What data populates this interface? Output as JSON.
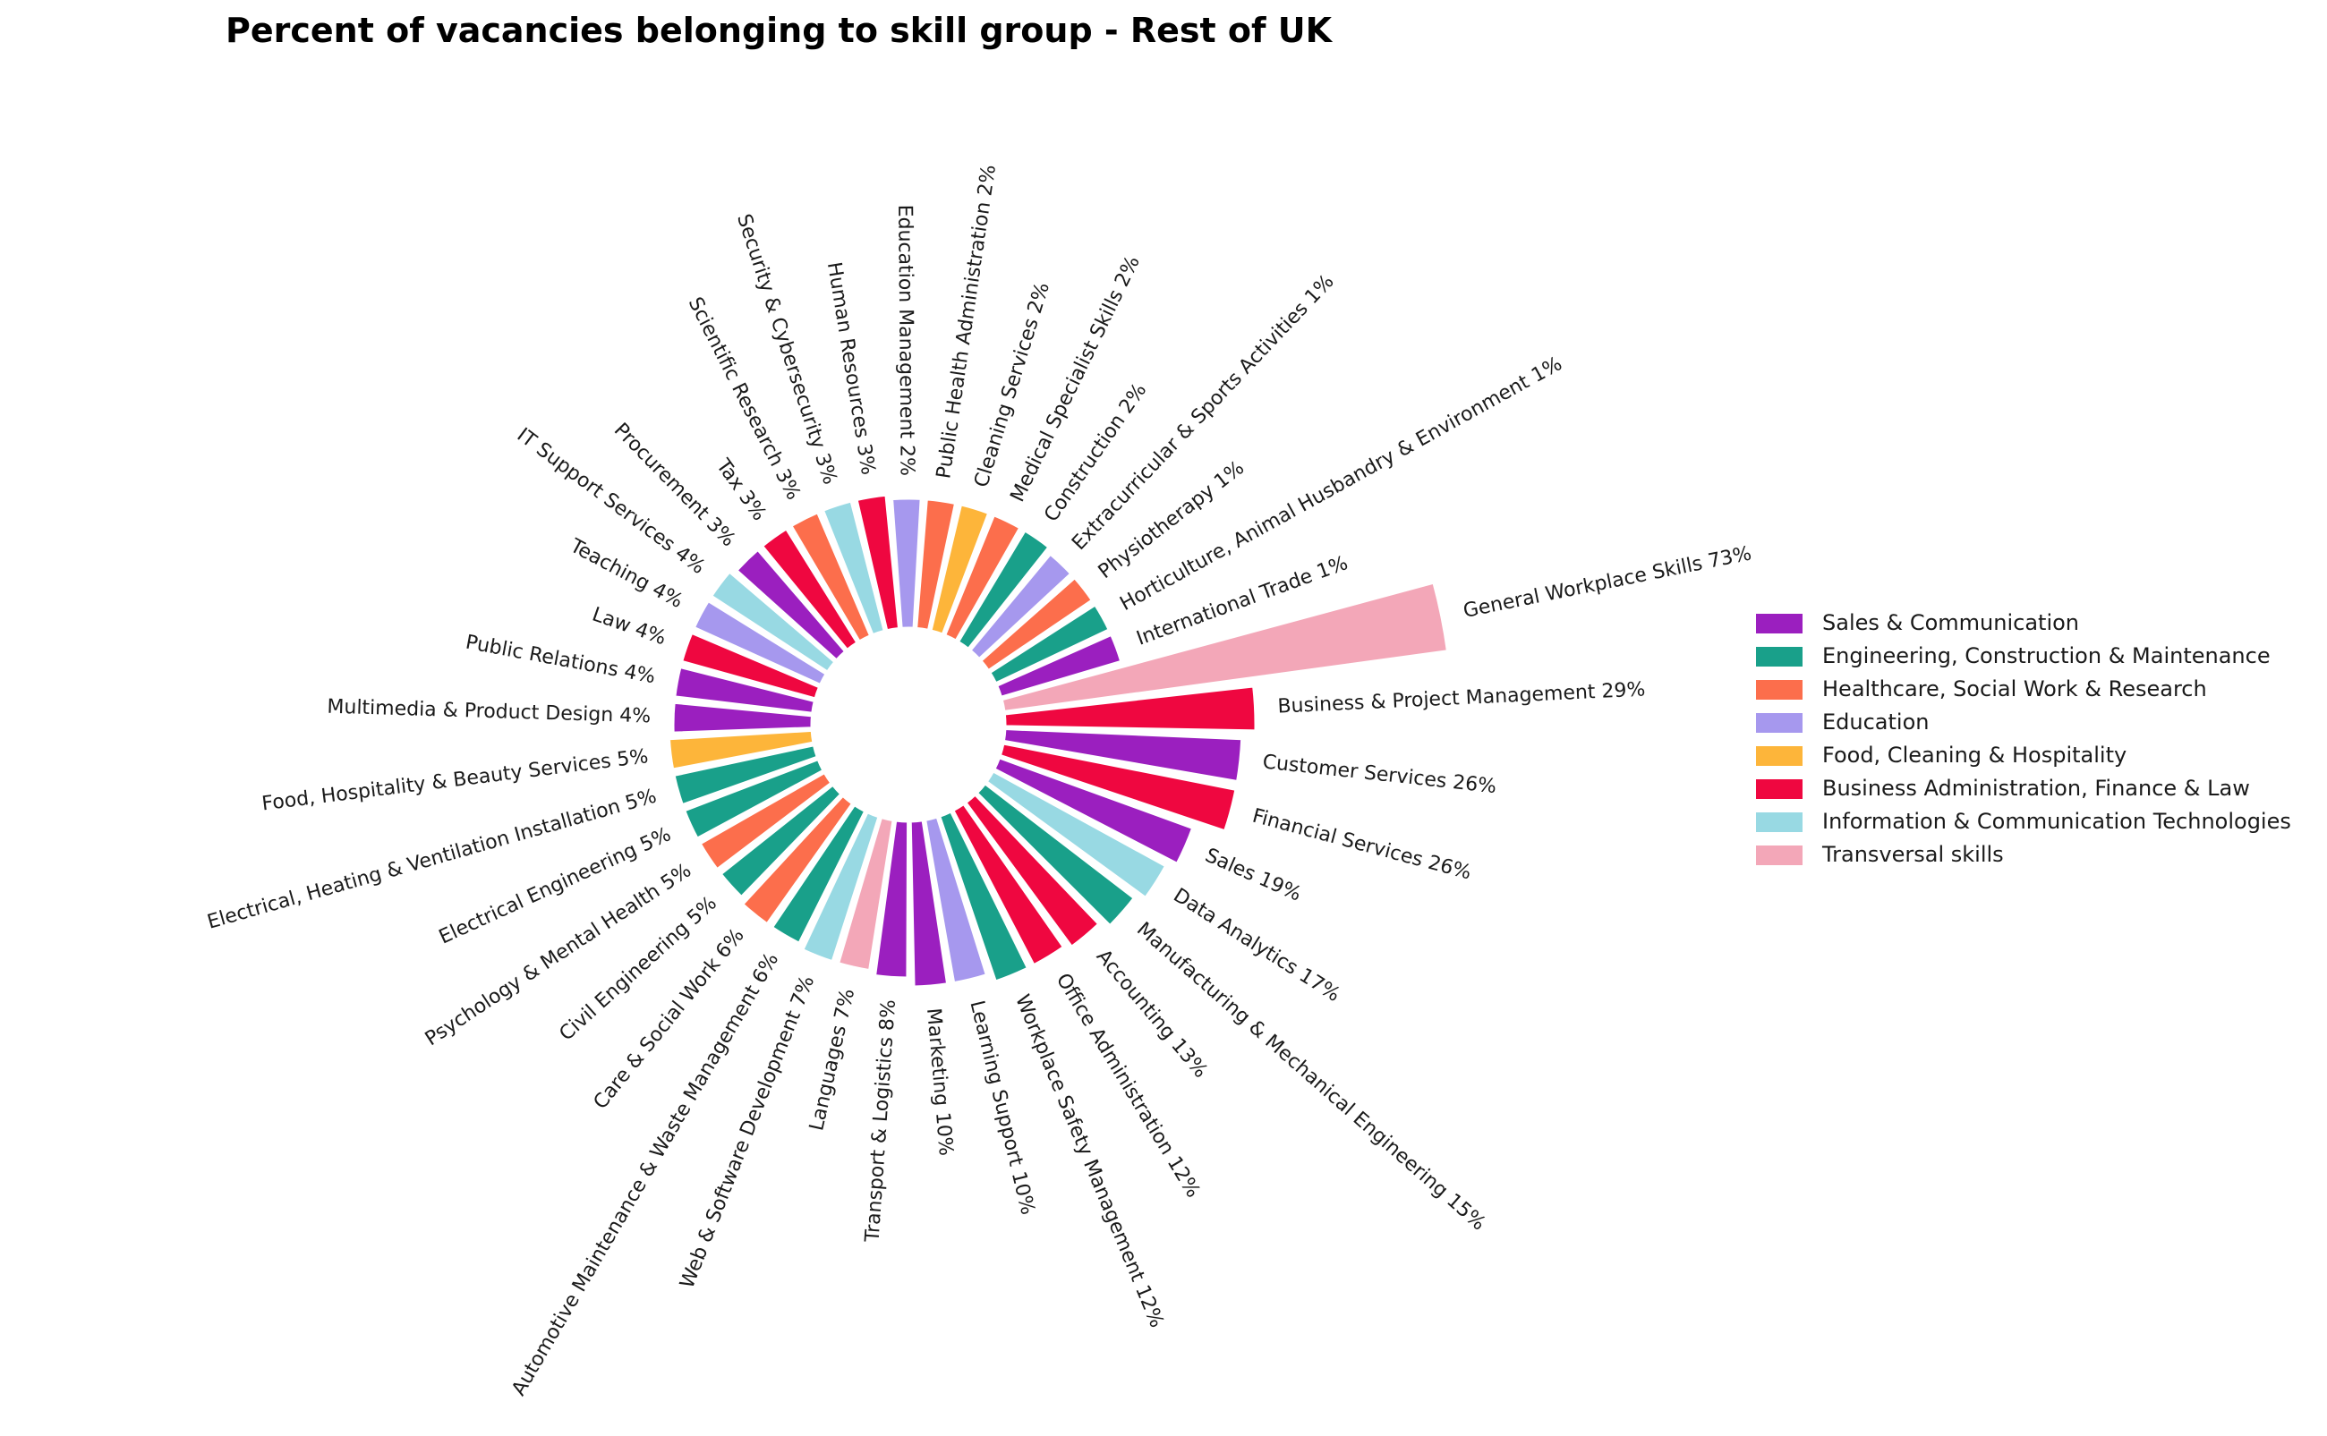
{
  "chart_data": {
    "type": "bar",
    "layout": "radial",
    "title": "Percent of vacancies belonging to skill group - Rest of UK",
    "unit": "%",
    "legend_position": "right",
    "grid": false,
    "groups": [
      {
        "name": "Sales & Communication",
        "color": "#9b1fbf"
      },
      {
        "name": "Engineering, Construction & Maintenance",
        "color": "#19a08a"
      },
      {
        "name": "Healthcare, Social Work & Research",
        "color": "#fc6e4c"
      },
      {
        "name": "Education",
        "color": "#a698ee"
      },
      {
        "name": "Food, Cleaning & Hospitality",
        "color": "#fdb53a"
      },
      {
        "name": "Business Administration, Finance & Law",
        "color": "#ef0740"
      },
      {
        "name": "Information & Communication Technologies",
        "color": "#98d9e3"
      },
      {
        "name": "Transversal skills",
        "color": "#f3a7b8"
      }
    ],
    "bars": [
      {
        "label": "General Workplace Skills 73%",
        "value": 73,
        "group": 7
      },
      {
        "label": "Business & Project Management 29%",
        "value": 29,
        "group": 5
      },
      {
        "label": "Customer Services 26%",
        "value": 26,
        "group": 0
      },
      {
        "label": "Financial Services 26%",
        "value": 26,
        "group": 5
      },
      {
        "label": "Sales 19%",
        "value": 19,
        "group": 0
      },
      {
        "label": "Data Analytics 17%",
        "value": 17,
        "group": 6
      },
      {
        "label": "Manufacturing & Mechanical Engineering 15%",
        "value": 15,
        "group": 1
      },
      {
        "label": "Accounting 13%",
        "value": 13,
        "group": 5
      },
      {
        "label": "Office Administration 12%",
        "value": 12,
        "group": 5
      },
      {
        "label": "Workplace Safety Management 12%",
        "value": 12,
        "group": 1
      },
      {
        "label": "Learning Support 10%",
        "value": 10,
        "group": 3
      },
      {
        "label": "Marketing 10%",
        "value": 10,
        "group": 0
      },
      {
        "label": "Transport & Logistics 8%",
        "value": 8,
        "group": 0
      },
      {
        "label": "Languages 7%",
        "value": 7,
        "group": 7
      },
      {
        "label": "Web & Software Development 7%",
        "value": 7,
        "group": 6
      },
      {
        "label": "Automotive Maintenance & Waste Management 6%",
        "value": 6,
        "group": 1
      },
      {
        "label": "Care & Social Work 6%",
        "value": 6,
        "group": 2
      },
      {
        "label": "Civil Engineering 5%",
        "value": 5,
        "group": 1
      },
      {
        "label": "Psychology & Mental Health 5%",
        "value": 5,
        "group": 2
      },
      {
        "label": "Electrical Engineering 5%",
        "value": 5,
        "group": 1
      },
      {
        "label": "Electrical, Heating & Ventilation Installation 5%",
        "value": 5,
        "group": 1
      },
      {
        "label": "Food, Hospitality & Beauty Services 5%",
        "value": 5,
        "group": 4
      },
      {
        "label": "Multimedia & Product Design 4%",
        "value": 4,
        "group": 0
      },
      {
        "label": "Public Relations 4%",
        "value": 4,
        "group": 0
      },
      {
        "label": "Law 4%",
        "value": 4,
        "group": 5
      },
      {
        "label": "Teaching 4%",
        "value": 4,
        "group": 3
      },
      {
        "label": "IT Support Services 4%",
        "value": 4,
        "group": 6
      },
      {
        "label": "Procurement 3%",
        "value": 3,
        "group": 0
      },
      {
        "label": "Tax 3%",
        "value": 3,
        "group": 5
      },
      {
        "label": "Scientific Research 3%",
        "value": 3,
        "group": 2
      },
      {
        "label": "Security & Cybersecurity 3%",
        "value": 3,
        "group": 6
      },
      {
        "label": "Human Resources 3%",
        "value": 3,
        "group": 5
      },
      {
        "label": "Education Management 2%",
        "value": 2,
        "group": 3
      },
      {
        "label": "Public Health Administration 2%",
        "value": 2,
        "group": 2
      },
      {
        "label": "Cleaning Services 2%",
        "value": 2,
        "group": 4
      },
      {
        "label": "Medical Specialist Skills 2%",
        "value": 2,
        "group": 2
      },
      {
        "label": "Construction 2%",
        "value": 2,
        "group": 1
      },
      {
        "label": "Extracurricular & Sports Activities 1%",
        "value": 1,
        "group": 3
      },
      {
        "label": "Physiotherapy 1%",
        "value": 1,
        "group": 2
      },
      {
        "label": "Horticulture, Animal Husbandry & Environment 1%",
        "value": 1,
        "group": 1
      },
      {
        "label": "International Trade 1%",
        "value": 1,
        "group": 0
      }
    ]
  }
}
